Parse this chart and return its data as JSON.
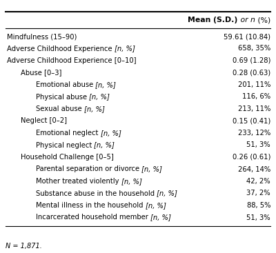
{
  "rows": [
    {
      "label": "Mindfulness (15–90)",
      "value": "59.61 (10.84)",
      "indent": 0,
      "has_bracket": false
    },
    {
      "label": "Adverse Childhood Experience ",
      "bracket": "[n, %]",
      "value": "658, 35%",
      "indent": 0,
      "has_bracket": true
    },
    {
      "label": "Adverse Childhood Experience [0–10]",
      "value": "0.69 (1.28)",
      "indent": 0,
      "has_bracket": false
    },
    {
      "label": "Abuse [0–3]",
      "value": "0.28 (0.63)",
      "indent": 1,
      "has_bracket": false
    },
    {
      "label": "Emotional abuse ",
      "bracket": "[n, %]",
      "value": "201, 11%",
      "indent": 2,
      "has_bracket": true
    },
    {
      "label": "Physical abuse ",
      "bracket": "[n, %]",
      "value": "116, 6%",
      "indent": 2,
      "has_bracket": true
    },
    {
      "label": "Sexual abuse ",
      "bracket": "[n, %]",
      "value": "213, 11%",
      "indent": 2,
      "has_bracket": true
    },
    {
      "label": "Neglect [0–2]",
      "value": "0.15 (0.41)",
      "indent": 1,
      "has_bracket": false
    },
    {
      "label": "Emotional neglect ",
      "bracket": "[n, %]",
      "value": "233, 12%",
      "indent": 2,
      "has_bracket": true
    },
    {
      "label": "Physical neglect ",
      "bracket": "[n, %]",
      "value": "51, 3%",
      "indent": 2,
      "has_bracket": true
    },
    {
      "label": "Household Challenge [0–5]",
      "value": "0.26 (0.61)",
      "indent": 1,
      "has_bracket": false
    },
    {
      "label": "Parental separation or divorce ",
      "bracket": "[n, %]",
      "value": "264, 14%",
      "indent": 2,
      "has_bracket": true
    },
    {
      "label": "Mother treated violently ",
      "bracket": "[n, %]",
      "value": "42, 2%",
      "indent": 2,
      "has_bracket": true
    },
    {
      "label": "Substance abuse in the household ",
      "bracket": "[n, %]",
      "value": "37, 2%",
      "indent": 2,
      "has_bracket": true
    },
    {
      "label": "Mental illness in the household ",
      "bracket": "[n, %]",
      "value": "88, 5%",
      "indent": 2,
      "has_bracket": true
    },
    {
      "label": "Incarcerated household member ",
      "bracket": "[n, %]",
      "value": "51, 3%",
      "indent": 2,
      "has_bracket": true
    }
  ],
  "footnote": "N = 1,871.",
  "bg_color": "#ffffff",
  "text_color": "#000000",
  "line_color": "#000000"
}
